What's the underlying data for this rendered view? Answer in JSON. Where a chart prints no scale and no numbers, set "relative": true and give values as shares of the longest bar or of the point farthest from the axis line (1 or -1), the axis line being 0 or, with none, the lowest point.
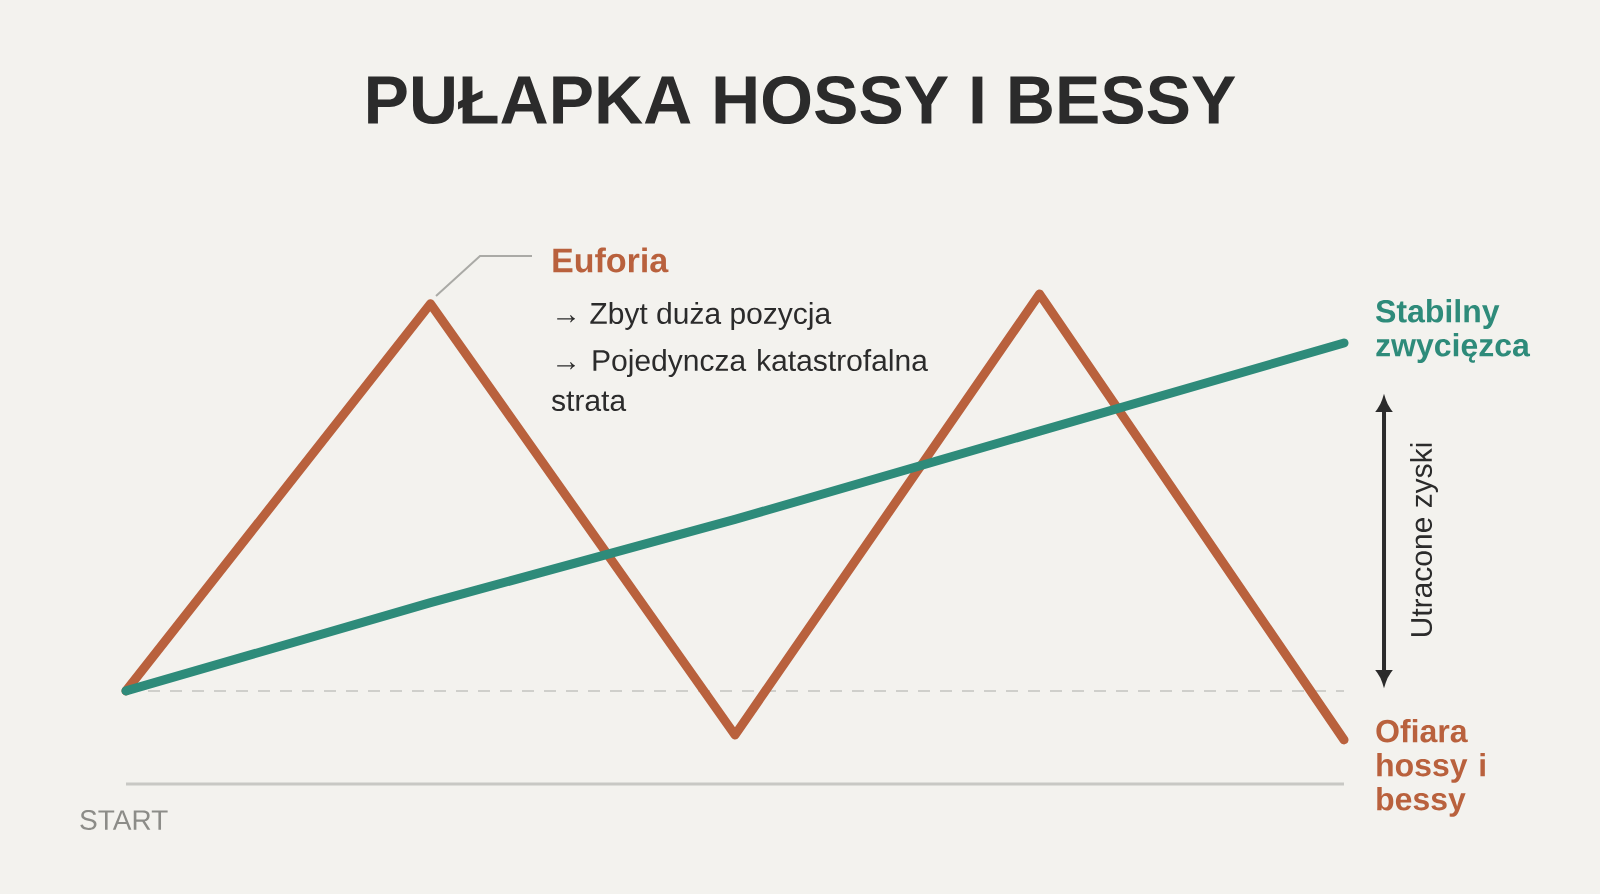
{
  "chart_data": {
    "type": "line",
    "title": "PUŁAPKA HOSSY I BESSY",
    "relative": true,
    "categories": [
      null,
      null,
      null,
      null,
      null
    ],
    "series": [
      {
        "name": "Ofiara hossy i bessy",
        "color": "#b9613d",
        "values": [
          0.19,
          0.98,
          0.1,
          1,
          0.09
        ]
      },
      {
        "name": "Stabilny zwycięzca",
        "color": "#2e8b7a",
        "values": [
          0.19,
          0.37,
          0.54,
          0.72,
          0.9
        ]
      }
    ],
    "ref_lines": [
      {
        "axis": "y",
        "value": 0.19,
        "color": "#cfcfcb",
        "line_style": "dashed"
      }
    ],
    "annotations": [
      "Euforia",
      "→ Zbyt duża pozycja",
      "→ Pojedyncza katastrofalna strata",
      "Utracone zyski",
      "START"
    ]
  }
}
